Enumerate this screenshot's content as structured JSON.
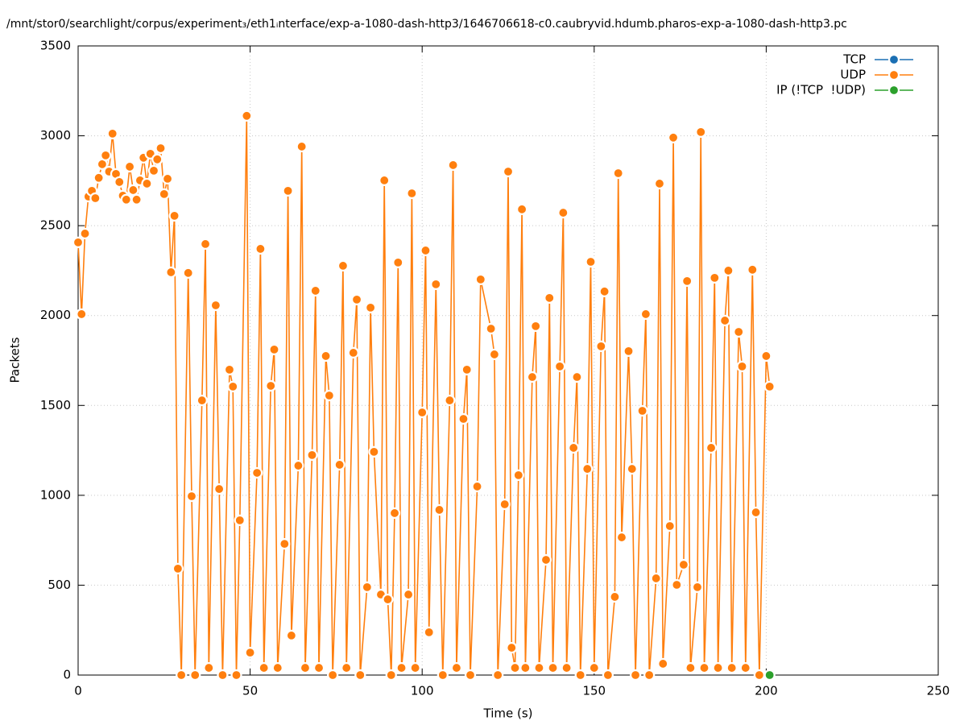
{
  "chart_data": {
    "type": "line",
    "title": "/mnt/stor0/searchlight/corpus/experiment₃/eth1ᵢnterface/exp-a-1080-dash-http3/1646706618-c0.caubryvid.hdumb.pharos-exp-a-1080-dash-http3.pc",
    "x_label": "Time (s)",
    "y_label": "Packets",
    "xlim": [
      0,
      250
    ],
    "xticks": [
      0,
      50,
      100,
      150,
      200,
      250
    ],
    "ylim": [
      0,
      3500
    ],
    "yticks": [
      0,
      500,
      1000,
      1500,
      2000,
      2500,
      3000,
      3500
    ],
    "grid": true,
    "legend": "top-right",
    "series": [
      {
        "name": "TCP",
        "color": "#1a6fb3",
        "x": [],
        "values": []
      },
      {
        "name": "UDP",
        "color": "#ff7f0e",
        "x": [
          0,
          1,
          2,
          3,
          4,
          5,
          6,
          7,
          8,
          9,
          10,
          11,
          12,
          13,
          14,
          15,
          16,
          17,
          18,
          19,
          20,
          21,
          22,
          23,
          24,
          25,
          26,
          27,
          28,
          29,
          30,
          32,
          33,
          34,
          36,
          37,
          38,
          40,
          41,
          42,
          44,
          45,
          46,
          47,
          49,
          50,
          52,
          53,
          54,
          56,
          57,
          58,
          60,
          61,
          62,
          64,
          65,
          66,
          68,
          69,
          70,
          72,
          73,
          74,
          76,
          77,
          78,
          80,
          81,
          82,
          84,
          85,
          86,
          88,
          89,
          90,
          91,
          92,
          93,
          94,
          96,
          97,
          98,
          100,
          101,
          102,
          104,
          105,
          106,
          108,
          109,
          110,
          112,
          113,
          114,
          116,
          117,
          120,
          121,
          122,
          124,
          125,
          126,
          127,
          128,
          129,
          130,
          132,
          133,
          134,
          136,
          137,
          138,
          140,
          141,
          142,
          144,
          145,
          146,
          148,
          149,
          150,
          152,
          153,
          154,
          156,
          157,
          158,
          160,
          161,
          162,
          164,
          165,
          166,
          168,
          169,
          170,
          172,
          173,
          174,
          176,
          177,
          178,
          180,
          181,
          182,
          184,
          185,
          186,
          188,
          189,
          190,
          192,
          193,
          194,
          196,
          197,
          198,
          200,
          201
        ],
        "values": [
          2407,
          2008,
          2456,
          2662,
          2694,
          2653,
          2766,
          2842,
          2891,
          2801,
          3012,
          2788,
          2743,
          2667,
          2645,
          2828,
          2698,
          2645,
          2752,
          2878,
          2734,
          2900,
          2806,
          2869,
          2931,
          2676,
          2761,
          2241,
          2555,
          592,
          0,
          2237,
          995,
          0,
          1528,
          2398,
          40,
          2057,
          1035,
          0,
          1699,
          1605,
          0,
          861,
          3111,
          125,
          1125,
          2371,
          40,
          1609,
          1811,
          40,
          730,
          2694,
          220,
          1165,
          2940,
          40,
          1224,
          2138,
          40,
          1775,
          1555,
          0,
          1170,
          2277,
          40,
          1793,
          2089,
          0,
          489,
          2044,
          1242,
          448,
          2752,
          421,
          0,
          901,
          2295,
          40,
          448,
          2680,
          40,
          1461,
          2362,
          238,
          2174,
          919,
          0,
          1528,
          2837,
          40,
          1425,
          1699,
          0,
          1049,
          2201,
          1927,
          1784,
          0,
          950,
          2801,
          152,
          40,
          1112,
          2591,
          40,
          1658,
          1941,
          40,
          641,
          2098,
          40,
          1717,
          2572,
          40,
          1264,
          1658,
          0,
          1147,
          2299,
          40,
          1829,
          2134,
          0,
          435,
          2792,
          766,
          1802,
          1147,
          0,
          1470,
          2008,
          0,
          538,
          2734,
          63,
          829,
          2990,
          502,
          614,
          2192,
          40,
          489,
          3021,
          40,
          1264,
          2210,
          40,
          1972,
          2250,
          40,
          1909,
          1717,
          40,
          2255,
          905,
          0,
          1775,
          1605
        ]
      },
      {
        "name": "IP (!TCP  !UDP)",
        "color": "#2ca02c",
        "x": [
          201
        ],
        "values": [
          0
        ]
      }
    ]
  }
}
